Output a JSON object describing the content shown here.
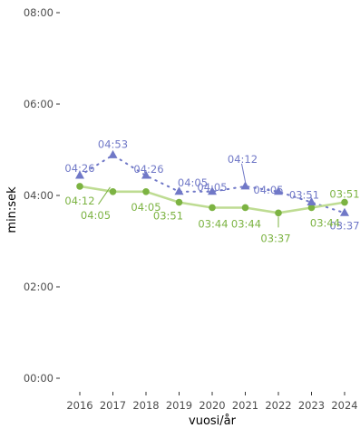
{
  "chart_data": {
    "type": "line",
    "title": "",
    "xlabel": "vuosi/år",
    "ylabel": "min:sek",
    "categories": [
      "2016",
      "2017",
      "2018",
      "2019",
      "2020",
      "2021",
      "2022",
      "2023",
      "2024"
    ],
    "y_axis": {
      "unit": "minutes",
      "ylim": [
        0,
        8
      ],
      "ticks": [
        0,
        2,
        4,
        6,
        8
      ],
      "tick_labels": [
        "00:00",
        "02:00",
        "04:00",
        "06:00",
        "08:00"
      ]
    },
    "grid": false,
    "legend": "none",
    "series": [
      {
        "line": "dotted",
        "marker": "triangle",
        "color": "#7078c7",
        "values": [
          4.433,
          4.883,
          4.433,
          4.083,
          4.083,
          4.2,
          4.083,
          3.85,
          3.617
        ],
        "labels": [
          "04:26",
          "04:53",
          "04:26",
          "04:05",
          "04:05",
          "04:12",
          "04:05",
          "03:51",
          "03:37"
        ]
      },
      {
        "line": "solid",
        "marker": "circle",
        "color": "#7cb342",
        "line_color": "#bedc92",
        "values": [
          4.2,
          4.083,
          4.083,
          3.85,
          3.733,
          3.733,
          3.617,
          3.733,
          3.85
        ],
        "labels": [
          "04:12",
          "04:05",
          "04:05",
          "03:51",
          "03:44",
          "03:44",
          "03:37",
          "03:44",
          "03:51"
        ]
      }
    ]
  }
}
